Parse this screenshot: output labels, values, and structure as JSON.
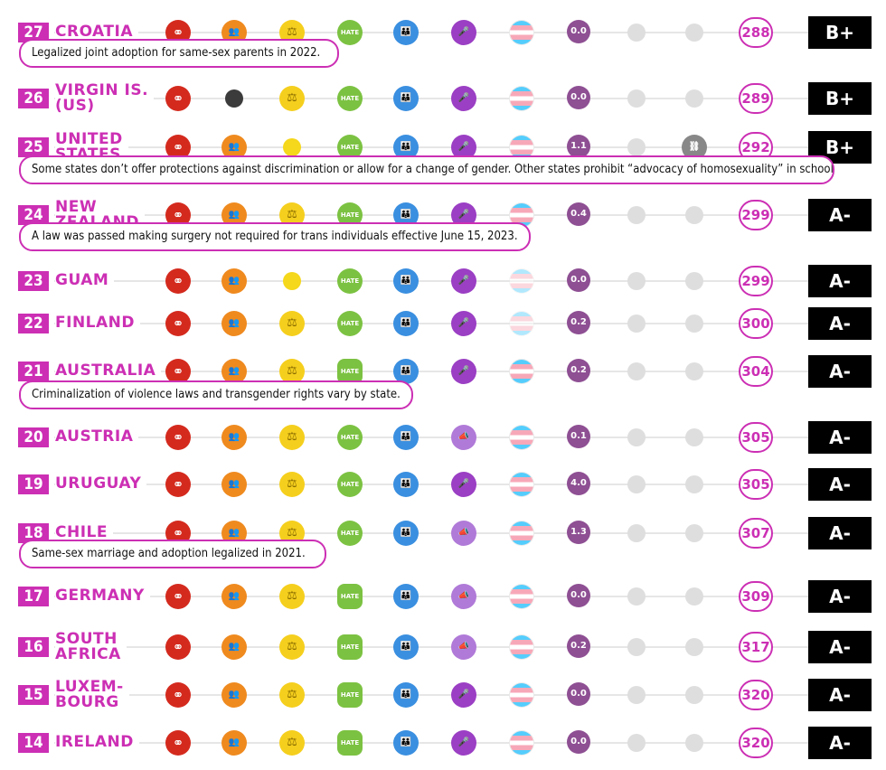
{
  "chart_data": {
    "type": "table",
    "rows": [
      {
        "rank": "27",
        "country": "CROATIA",
        "icons": [
          "marriage",
          "adoption",
          "equality-law",
          "hate-crime-law",
          "family",
          "speech",
          "trans",
          "0.0",
          "grey",
          "grey"
        ],
        "score_value": "0.0",
        "total": "288",
        "grade": "B+",
        "note": "Legalized joint adoption for same-sex parents in 2022."
      },
      {
        "rank": "26",
        "country": "VIRGIN IS.\n(US)",
        "icons": [
          "marriage",
          "dark",
          "equality-law",
          "hate-crime-law",
          "family",
          "speech",
          "trans",
          "0.0",
          "grey",
          "grey"
        ],
        "score_value": "0.0",
        "total": "289",
        "grade": "B+",
        "note": ""
      },
      {
        "rank": "25",
        "country": "UNITED\nSTATES",
        "icons": [
          "marriage",
          "adoption",
          "yellow-dot",
          "hate-crime-law",
          "family",
          "speech",
          "trans",
          "1.1",
          "grey",
          "cuffs"
        ],
        "score_value": "1.1",
        "total": "292",
        "grade": "B+",
        "note": "Some states don’t offer protections against discrimination or allow for a change of gender. Other states prohibit “advocacy of homosexuality” in schools."
      },
      {
        "rank": "24",
        "country": "NEW\nZEALAND",
        "icons": [
          "marriage",
          "adoption",
          "equality-law",
          "hate-crime-law",
          "family",
          "speech",
          "trans",
          "0.4",
          "grey",
          "grey"
        ],
        "score_value": "0.4",
        "total": "299",
        "grade": "A-",
        "note": "A law was passed making surgery not required for trans individuals effective June 15, 2023."
      },
      {
        "rank": "23",
        "country": "GUAM",
        "icons": [
          "marriage",
          "adoption",
          "yellow-dot",
          "hate-crime-law",
          "family",
          "speech",
          "trans-faded",
          "0.0",
          "grey",
          "grey"
        ],
        "score_value": "0.0",
        "total": "299",
        "grade": "A-",
        "note": ""
      },
      {
        "rank": "22",
        "country": "FINLAND",
        "icons": [
          "marriage",
          "adoption",
          "equality-law",
          "hate-crime-law",
          "family",
          "speech",
          "trans-faded",
          "0.2",
          "grey",
          "grey"
        ],
        "score_value": "0.2",
        "total": "300",
        "grade": "A-",
        "note": ""
      },
      {
        "rank": "21",
        "country": "AUSTRALIA",
        "icons": [
          "marriage",
          "adoption",
          "equality-law",
          "hate-sq",
          "family",
          "speech",
          "trans",
          "0.2",
          "grey",
          "grey"
        ],
        "score_value": "0.2",
        "total": "304",
        "grade": "A-",
        "note": "Criminalization of violence laws and transgender rights vary by state."
      },
      {
        "rank": "20",
        "country": "AUSTRIA",
        "icons": [
          "marriage",
          "adoption",
          "equality-law",
          "hate-crime-law",
          "family",
          "megaphone",
          "trans",
          "0.1",
          "grey",
          "grey"
        ],
        "score_value": "0.1",
        "total": "305",
        "grade": "A-",
        "note": ""
      },
      {
        "rank": "19",
        "country": "URUGUAY",
        "icons": [
          "marriage",
          "adoption",
          "equality-law",
          "hate-crime-law",
          "family",
          "speech",
          "trans",
          "4.0",
          "grey",
          "grey"
        ],
        "score_value": "4.0",
        "total": "305",
        "grade": "A-",
        "note": ""
      },
      {
        "rank": "18",
        "country": "CHILE",
        "icons": [
          "marriage",
          "adoption",
          "equality-law",
          "hate-crime-law",
          "family",
          "megaphone",
          "trans",
          "1.3",
          "grey",
          "grey"
        ],
        "score_value": "1.3",
        "total": "307",
        "grade": "A-",
        "note": "Same-sex marriage and adoption legalized in 2021."
      },
      {
        "rank": "17",
        "country": "GERMANY",
        "icons": [
          "marriage",
          "adoption",
          "equality-law",
          "hate-sq",
          "family",
          "megaphone",
          "trans",
          "0.0",
          "grey",
          "grey"
        ],
        "score_value": "0.0",
        "total": "309",
        "grade": "A-",
        "note": ""
      },
      {
        "rank": "16",
        "country": "SOUTH\nAFRICA",
        "icons": [
          "marriage",
          "adoption",
          "scales",
          "hate-sq",
          "family",
          "megaphone",
          "trans",
          "0.2",
          "grey",
          "grey"
        ],
        "score_value": "0.2",
        "total": "317",
        "grade": "A-",
        "note": ""
      },
      {
        "rank": "15",
        "country": "LUXEM-\nBOURG",
        "icons": [
          "marriage",
          "adoption",
          "equality-law",
          "hate-sq",
          "family",
          "speech",
          "trans",
          "0.0",
          "grey",
          "grey"
        ],
        "score_value": "0.0",
        "total": "320",
        "grade": "A-",
        "note": ""
      },
      {
        "rank": "14",
        "country": "IRELAND",
        "icons": [
          "marriage",
          "adoption",
          "equality-law",
          "hate-sq",
          "family",
          "speech",
          "trans",
          "0.0",
          "grey",
          "grey"
        ],
        "score_value": "0.0",
        "total": "320",
        "grade": "A-",
        "note": ""
      }
    ],
    "colors": {
      "accent": "#cc2fb4",
      "marriage": "#d42a1e",
      "adoption": "#ef8a1f",
      "equality-law": "#f5cf1d",
      "hate-crime-law": "#7cc242",
      "family": "#3a8fe0",
      "speech": "#9b3fc4",
      "score": "#8e4f93",
      "grade": "#000000"
    }
  }
}
